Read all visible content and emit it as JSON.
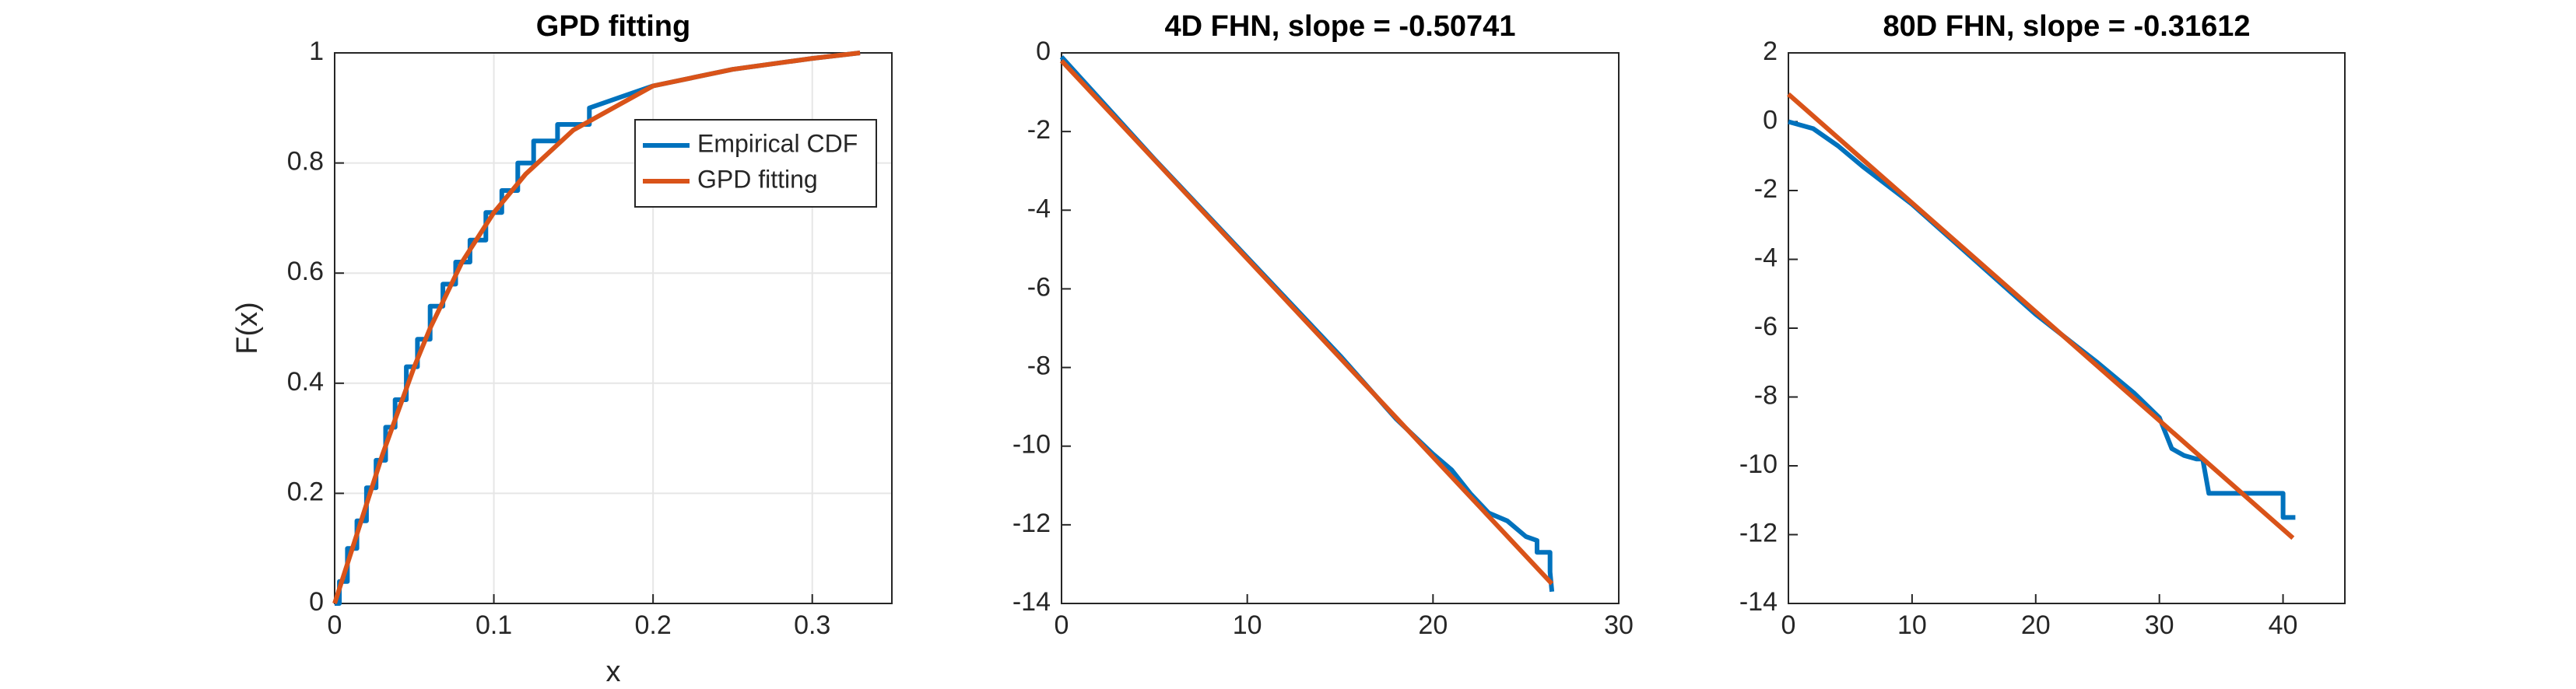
{
  "chart_data": [
    {
      "type": "line",
      "title": "GPD fitting",
      "x_label": "x",
      "y_label": "F(x)",
      "xlim": [
        0,
        0.35
      ],
      "xticks": [
        0,
        0.1,
        0.2,
        0.3
      ],
      "ylim": [
        0,
        1
      ],
      "yticks": [
        0,
        0.2,
        0.4,
        0.6,
        0.8,
        1
      ],
      "grid": true,
      "legend": "northeast",
      "series": [
        {
          "name": "Empirical CDF",
          "color": "#0072BD",
          "x": [
            0,
            0.003,
            0.003,
            0.008,
            0.008,
            0.014,
            0.014,
            0.02,
            0.02,
            0.026,
            0.026,
            0.032,
            0.032,
            0.038,
            0.038,
            0.045,
            0.045,
            0.052,
            0.052,
            0.06,
            0.06,
            0.068,
            0.068,
            0.076,
            0.076,
            0.085,
            0.085,
            0.095,
            0.095,
            0.105,
            0.105,
            0.115,
            0.115,
            0.125,
            0.125,
            0.14,
            0.14,
            0.16,
            0.16,
            0.18,
            0.2,
            0.25,
            0.3,
            0.33
          ],
          "values": [
            0,
            0,
            0.04,
            0.04,
            0.1,
            0.1,
            0.15,
            0.15,
            0.21,
            0.21,
            0.26,
            0.26,
            0.32,
            0.32,
            0.37,
            0.37,
            0.43,
            0.43,
            0.48,
            0.48,
            0.54,
            0.54,
            0.58,
            0.58,
            0.62,
            0.62,
            0.66,
            0.66,
            0.71,
            0.71,
            0.75,
            0.75,
            0.8,
            0.8,
            0.84,
            0.84,
            0.87,
            0.87,
            0.9,
            0.92,
            0.94,
            0.97,
            0.99,
            1.0
          ]
        },
        {
          "name": "GPD fitting",
          "color": "#D95319",
          "x": [
            0,
            0.01,
            0.02,
            0.03,
            0.04,
            0.05,
            0.06,
            0.08,
            0.1,
            0.12,
            0.15,
            0.2,
            0.25,
            0.3,
            0.33
          ],
          "values": [
            0,
            0.09,
            0.18,
            0.27,
            0.35,
            0.43,
            0.5,
            0.62,
            0.71,
            0.78,
            0.86,
            0.94,
            0.97,
            0.99,
            1.0
          ]
        }
      ]
    },
    {
      "type": "line",
      "title": "4D FHN, slope = -0.50741",
      "xlim": [
        0,
        30
      ],
      "xticks": [
        0,
        10,
        20,
        30
      ],
      "ylim": [
        -14,
        0
      ],
      "yticks": [
        -14,
        -12,
        -10,
        -8,
        -6,
        -4,
        -2,
        0
      ],
      "grid": false,
      "series": [
        {
          "color": "#0072BD",
          "x": [
            0,
            5,
            10,
            15,
            18,
            20,
            21,
            22,
            23,
            24,
            25,
            25.6,
            25.6,
            26.3,
            26.3,
            26.4
          ],
          "values": [
            -0.1,
            -2.7,
            -5.2,
            -7.7,
            -9.3,
            -10.2,
            -10.6,
            -11.2,
            -11.7,
            -11.9,
            -12.3,
            -12.4,
            -12.7,
            -12.7,
            -13.2,
            -13.7
          ]
        },
        {
          "color": "#D95319",
          "x": [
            0,
            26.4
          ],
          "values": [
            -0.2,
            -13.5
          ]
        }
      ]
    },
    {
      "type": "line",
      "title": "80D FHN, slope = -0.31612",
      "xlim": [
        0,
        45
      ],
      "xticks": [
        0,
        10,
        20,
        30,
        40
      ],
      "ylim": [
        -14,
        2
      ],
      "yticks": [
        -14,
        -12,
        -10,
        -8,
        -6,
        -4,
        -2,
        0,
        2
      ],
      "grid": false,
      "series": [
        {
          "color": "#0072BD",
          "x": [
            0,
            2,
            4,
            6,
            10,
            20,
            25,
            28,
            30,
            31,
            32,
            33,
            33.5,
            34,
            40,
            40,
            41
          ],
          "values": [
            0,
            -0.2,
            -0.7,
            -1.3,
            -2.4,
            -5.6,
            -7.0,
            -7.9,
            -8.6,
            -9.5,
            -9.7,
            -9.8,
            -9.8,
            -10.8,
            -10.8,
            -11.5,
            -11.5
          ]
        },
        {
          "color": "#D95319",
          "x": [
            0,
            40.8
          ],
          "values": [
            0.8,
            -12.1
          ]
        }
      ]
    }
  ]
}
